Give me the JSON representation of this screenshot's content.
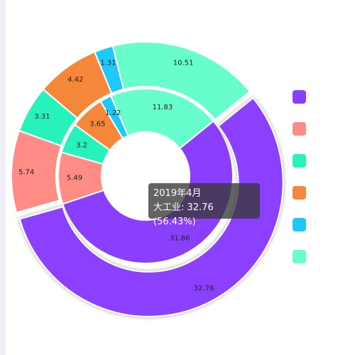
{
  "chart_data": {
    "type": "pie",
    "rings": [
      {
        "ring": "inner",
        "slices": [
          {
            "value": 31.86,
            "label": "31.86",
            "color": "#8a3ffc"
          },
          {
            "value": 5.49,
            "label": "5.49",
            "color": "#ff8d85"
          },
          {
            "value": 3.2,
            "label": "3.2",
            "color": "#28f2bb"
          },
          {
            "value": 3.65,
            "label": "3.65",
            "color": "#f5873a"
          },
          {
            "value": 1.22,
            "label": "1.22",
            "color": "#1ec8fb"
          },
          {
            "value": 11.83,
            "label": "11.83",
            "color": "#68fdcd"
          }
        ]
      },
      {
        "ring": "outer",
        "slices": [
          {
            "value": 32.76,
            "label": "32.76",
            "color": "#8a3ffc"
          },
          {
            "value": 5.74,
            "label": "5.74",
            "color": "#ff8d85"
          },
          {
            "value": 3.31,
            "label": "3.31",
            "color": "#28f2bb"
          },
          {
            "value": 4.42,
            "label": "4.42",
            "color": "#f5873a"
          },
          {
            "value": 1.31,
            "label": "1.31",
            "color": "#1ec8fb"
          },
          {
            "value": 10.51,
            "label": "10.51",
            "color": "#68fdcd"
          }
        ]
      }
    ],
    "highlighted": {
      "ring": "outer",
      "slice": 0
    },
    "legend": {
      "placement": "right",
      "colors": [
        "#8a3ffc",
        "#ff8d85",
        "#28f2bb",
        "#f5873a",
        "#1ec8fb",
        "#68fdcd"
      ]
    }
  },
  "tooltip": {
    "title": "2019年4月",
    "line": "大工业: 32.76 (56.43%)"
  }
}
